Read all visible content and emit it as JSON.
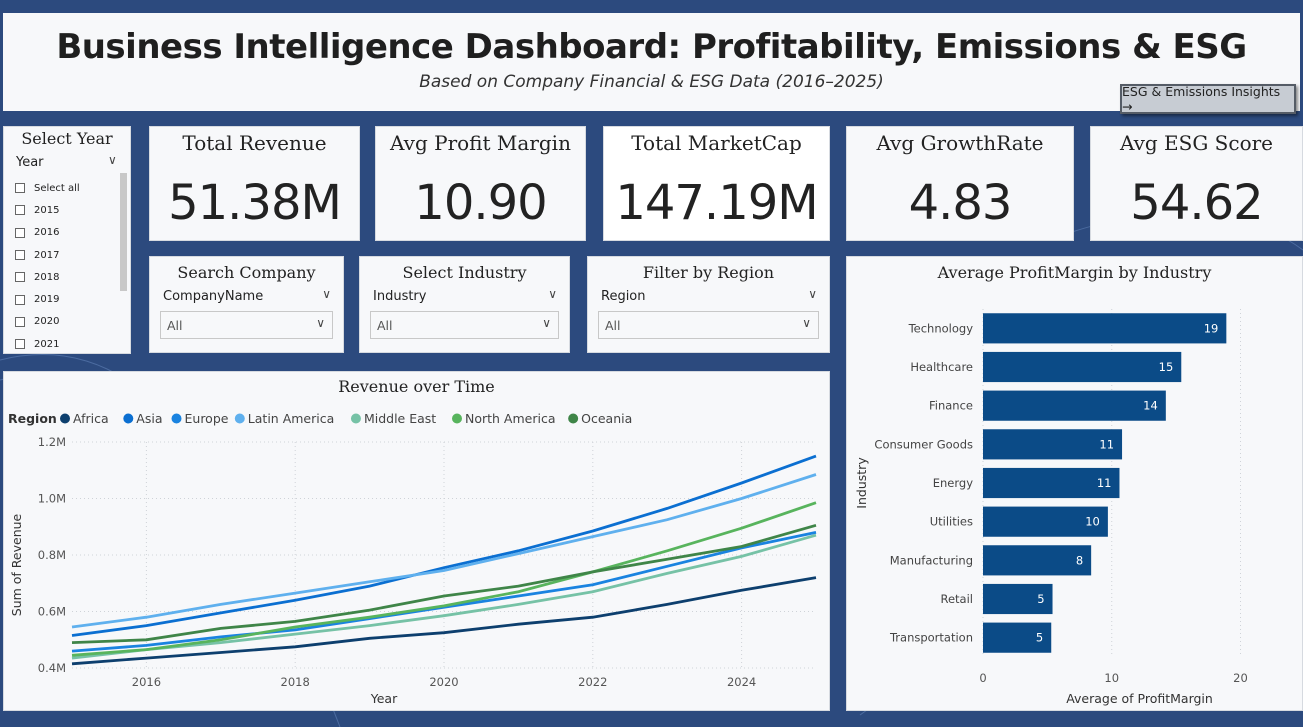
{
  "header": {
    "title": "Business Intelligence Dashboard: Profitability, Emissions & ESG",
    "subtitle": "Based on Company Financial & ESG Data (2016–2025)",
    "nav_button": "ESG & Emissions Insights →"
  },
  "year_slicer": {
    "title": "Select Year",
    "field": "Year",
    "items": [
      "Select all",
      "2015",
      "2016",
      "2017",
      "2018",
      "2019",
      "2020",
      "2021"
    ]
  },
  "kpis": [
    {
      "label": "Total Revenue",
      "value": "51.38M"
    },
    {
      "label": "Avg Profit Margin",
      "value": "10.90"
    },
    {
      "label": "Total MarketCap",
      "value": "147.19M"
    },
    {
      "label": "Avg GrowthRate",
      "value": "4.83"
    },
    {
      "label": "Avg ESG Score",
      "value": "54.62"
    }
  ],
  "dropdowns": [
    {
      "title": "Search Company",
      "field": "CompanyName",
      "value": "All"
    },
    {
      "title": "Select Industry",
      "field": "Industry",
      "value": "All"
    },
    {
      "title": "Filter by Region",
      "field": "Region",
      "value": "All"
    }
  ],
  "chart_data": [
    {
      "type": "line",
      "title": "Revenue over Time",
      "legend_title": "Region",
      "legend_position": "top-left",
      "xlabel": "Year",
      "ylabel": "Sum of Revenue",
      "x": [
        2015,
        2016,
        2017,
        2018,
        2019,
        2020,
        2021,
        2022,
        2023,
        2024,
        2025
      ],
      "xticks": [
        "2016",
        "2018",
        "2020",
        "2022",
        "2024"
      ],
      "xtick_values": [
        2016,
        2018,
        2020,
        2022,
        2024
      ],
      "yticks": [
        "0.4M",
        "0.6M",
        "0.8M",
        "1.0M",
        "1.2M"
      ],
      "ytick_values": [
        0.4,
        0.6,
        0.8,
        1.0,
        1.2
      ],
      "xlim": [
        2015,
        2025
      ],
      "ylim": [
        0.4,
        1.2
      ],
      "grid": true,
      "series": [
        {
          "name": "Africa",
          "color": "#0d3f6e",
          "values": [
            0.415,
            0.435,
            0.455,
            0.475,
            0.505,
            0.525,
            0.555,
            0.58,
            0.625,
            0.675,
            0.72
          ]
        },
        {
          "name": "Asia",
          "color": "#0b6fd1",
          "values": [
            0.515,
            0.55,
            0.595,
            0.64,
            0.69,
            0.755,
            0.815,
            0.885,
            0.965,
            1.055,
            1.15
          ]
        },
        {
          "name": "Europe",
          "color": "#1a83e0",
          "values": [
            0.46,
            0.48,
            0.51,
            0.535,
            0.575,
            0.615,
            0.655,
            0.695,
            0.76,
            0.825,
            0.88
          ]
        },
        {
          "name": "Latin America",
          "color": "#5fb0ee",
          "values": [
            0.545,
            0.58,
            0.625,
            0.665,
            0.705,
            0.745,
            0.805,
            0.865,
            0.925,
            1.0,
            1.085
          ]
        },
        {
          "name": "Middle East",
          "color": "#76c2a6",
          "values": [
            0.435,
            0.465,
            0.49,
            0.52,
            0.55,
            0.585,
            0.625,
            0.67,
            0.735,
            0.795,
            0.87
          ]
        },
        {
          "name": "North America",
          "color": "#58b45d",
          "values": [
            0.445,
            0.465,
            0.5,
            0.545,
            0.58,
            0.62,
            0.67,
            0.74,
            0.815,
            0.895,
            0.985
          ]
        },
        {
          "name": "Oceania",
          "color": "#3f8548",
          "values": [
            0.49,
            0.5,
            0.54,
            0.565,
            0.605,
            0.655,
            0.69,
            0.74,
            0.785,
            0.83,
            0.905
          ]
        }
      ]
    },
    {
      "type": "bar",
      "orientation": "horizontal",
      "title": "Average ProfitMargin by Industry",
      "xlabel": "Average of ProfitMargin",
      "ylabel": "Industry",
      "categories": [
        "Technology",
        "Healthcare",
        "Finance",
        "Consumer Goods",
        "Energy",
        "Utilities",
        "Manufacturing",
        "Retail",
        "Transportation"
      ],
      "values": [
        18.9,
        15.4,
        14.2,
        10.8,
        10.6,
        9.7,
        8.4,
        5.4,
        5.3
      ],
      "labels": [
        "19",
        "15",
        "14",
        "11",
        "11",
        "10",
        "8",
        "5",
        "5"
      ],
      "xticks": [
        "0",
        "10",
        "20"
      ],
      "xtick_values": [
        0,
        10,
        20
      ],
      "xlim": [
        0,
        24
      ],
      "grid": true,
      "color": "#0b4b87"
    }
  ]
}
